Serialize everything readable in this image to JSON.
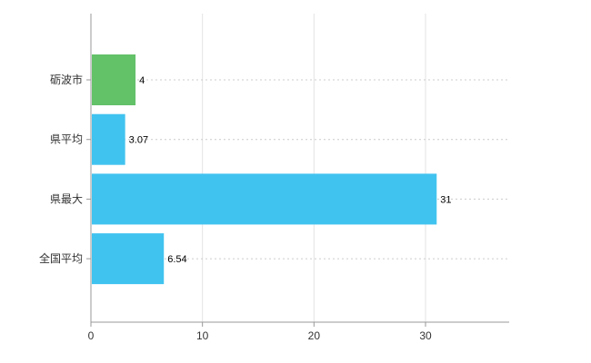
{
  "chart_data": {
    "type": "bar",
    "orientation": "horizontal",
    "title": "",
    "xlabel": "",
    "ylabel": "",
    "categories": [
      "砺波市",
      "県平均",
      "県最大",
      "全国平均"
    ],
    "values": [
      4,
      3.07,
      31,
      6.54
    ],
    "value_labels": [
      "4",
      "3.07",
      "31",
      "6.54"
    ],
    "bar_colors": [
      "#63c168",
      "#41c3ef",
      "#41c3ef",
      "#41c3ef"
    ],
    "xlim": [
      0,
      37.5
    ],
    "x_ticks": [
      0,
      10,
      20,
      30
    ],
    "grid": true,
    "legend": "none",
    "colors": {
      "axis": "#999999",
      "gridline": "#e3e3e3",
      "category_dash_line": "#cccccc",
      "tick_label": "#333333",
      "value_label": "#000000",
      "background": "#ffffff"
    }
  }
}
